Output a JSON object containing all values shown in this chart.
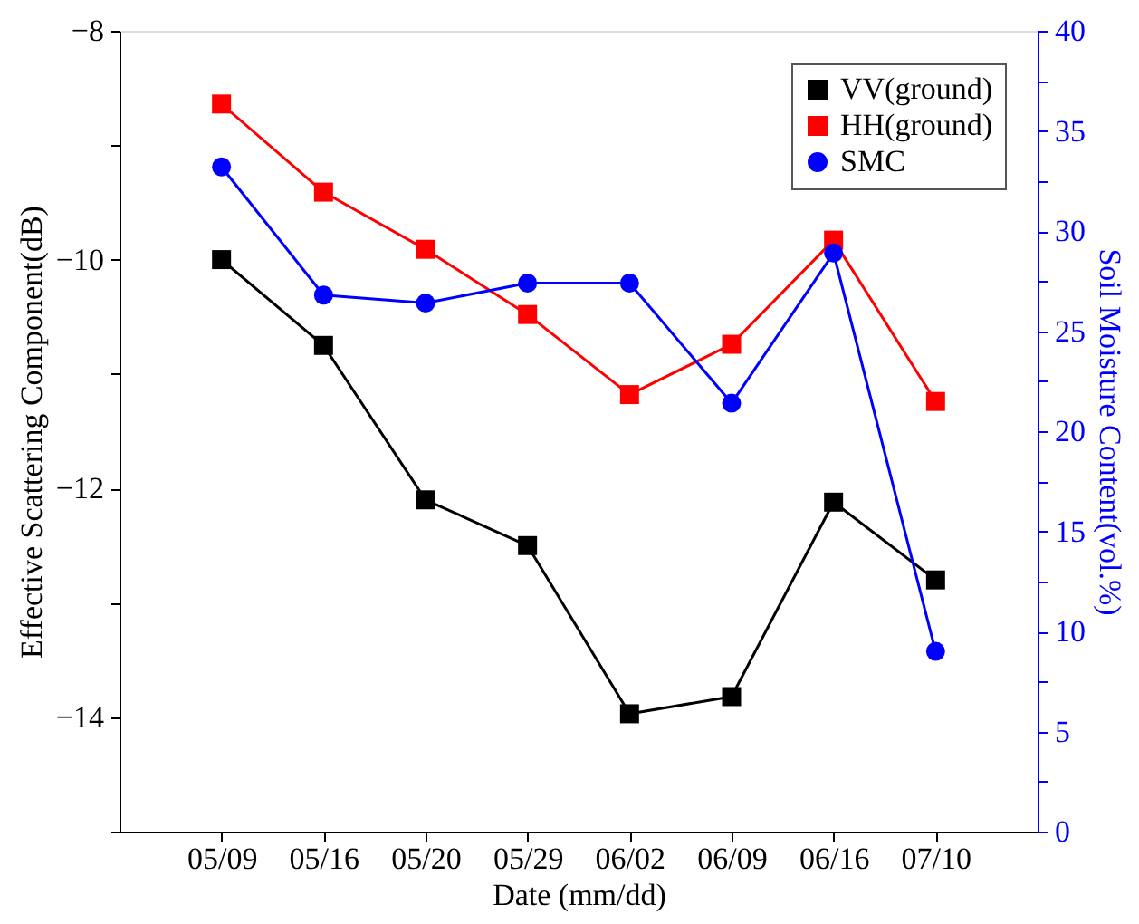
{
  "chart_data": {
    "type": "line",
    "xlabel": "Date (mm/dd)",
    "ylabel": "Effective Scattering Component(dB)",
    "y2label": "Soil Moisture Content(vol.%)",
    "categories": [
      "05/09",
      "05/16",
      "05/20",
      "05/29",
      "06/02",
      "06/09",
      "06/16",
      "07/10"
    ],
    "series": [
      {
        "name": "VV(ground)",
        "color": "#000000",
        "marker": "square",
        "values": [
          -10.0,
          -10.75,
          -12.1,
          -12.5,
          -13.97,
          -13.82,
          -12.12,
          -12.8
        ]
      },
      {
        "name": "HH(ground)",
        "color": "#ff0000",
        "marker": "square",
        "values": [
          -8.64,
          -9.41,
          -9.91,
          -10.48,
          -11.18,
          -10.74,
          -9.83,
          -11.24
        ]
      },
      {
        "name": "SMC",
        "color": "#0000ff",
        "marker": "circle",
        "axis": "y2",
        "values": [
          33.2,
          26.8,
          26.4,
          27.4,
          27.4,
          21.4,
          28.9,
          9.0
        ]
      }
    ],
    "ylim": [
      -15,
      -8
    ],
    "yticks": [
      -8,
      {
        "value": -9,
        "label": null
      },
      -10,
      {
        "value": -11,
        "label": null
      },
      -12,
      {
        "value": -13,
        "label": null
      },
      -14,
      {
        "value": -15,
        "label": null
      }
    ],
    "y2lim": [
      0,
      40
    ],
    "y2ticks": [
      0,
      {
        "value": 2.5,
        "label": null
      },
      5,
      {
        "value": 7.5,
        "label": null
      },
      10,
      {
        "value": 12.5,
        "label": null
      },
      15,
      {
        "value": 17.5,
        "label": null
      },
      20,
      {
        "value": 22.5,
        "label": null
      },
      25,
      {
        "value": 27.5,
        "label": null
      },
      30,
      {
        "value": 32.5,
        "label": null
      },
      35,
      {
        "value": 37.5,
        "label": null
      },
      40
    ],
    "grid": false,
    "legend": "top right",
    "line_style": "solid"
  }
}
